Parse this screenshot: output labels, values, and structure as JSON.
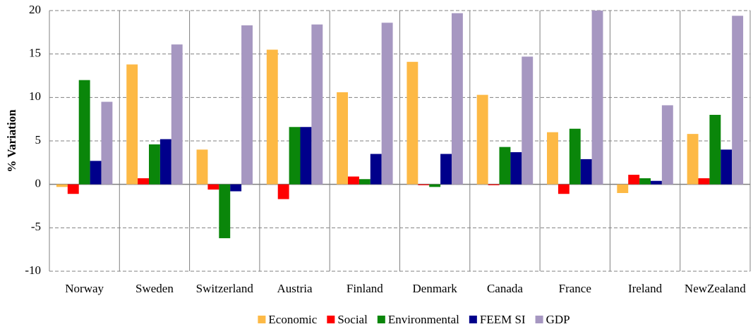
{
  "chart_data": {
    "type": "bar",
    "y_label": "% Variation",
    "categories": [
      "Norway",
      "Sweden",
      "Switzerland",
      "Austria",
      "Finland",
      "Denmark",
      "Canada",
      "France",
      "Ireland",
      "NewZealand"
    ],
    "series": [
      {
        "name": "Economic",
        "color": "#fdb945",
        "values": [
          -0.3,
          13.8,
          4.0,
          15.5,
          10.6,
          14.1,
          10.3,
          6.0,
          -1.0,
          5.8
        ]
      },
      {
        "name": "Social",
        "color": "#ff0000",
        "values": [
          -1.1,
          0.7,
          -0.6,
          -1.7,
          0.9,
          -0.1,
          -0.1,
          -1.1,
          1.1,
          0.7
        ]
      },
      {
        "name": "Environmental",
        "color": "#0a860a",
        "values": [
          12.0,
          4.6,
          -6.2,
          6.6,
          0.6,
          -0.3,
          4.3,
          6.4,
          0.7,
          8.0
        ]
      },
      {
        "name": "FEEM SI",
        "color": "#00008b",
        "values": [
          2.7,
          5.2,
          -0.8,
          6.6,
          3.5,
          3.5,
          3.7,
          2.9,
          0.4,
          4.0
        ]
      },
      {
        "name": "GDP",
        "color": "#a697c1",
        "values": [
          9.5,
          16.1,
          18.3,
          18.4,
          18.6,
          19.7,
          14.7,
          20.0,
          9.1,
          19.4
        ]
      }
    ],
    "ylim": [
      -10,
      20
    ],
    "yticks": [
      -10,
      -5,
      0,
      5,
      10,
      15,
      20
    ],
    "grid": true,
    "legend": "bottom"
  }
}
